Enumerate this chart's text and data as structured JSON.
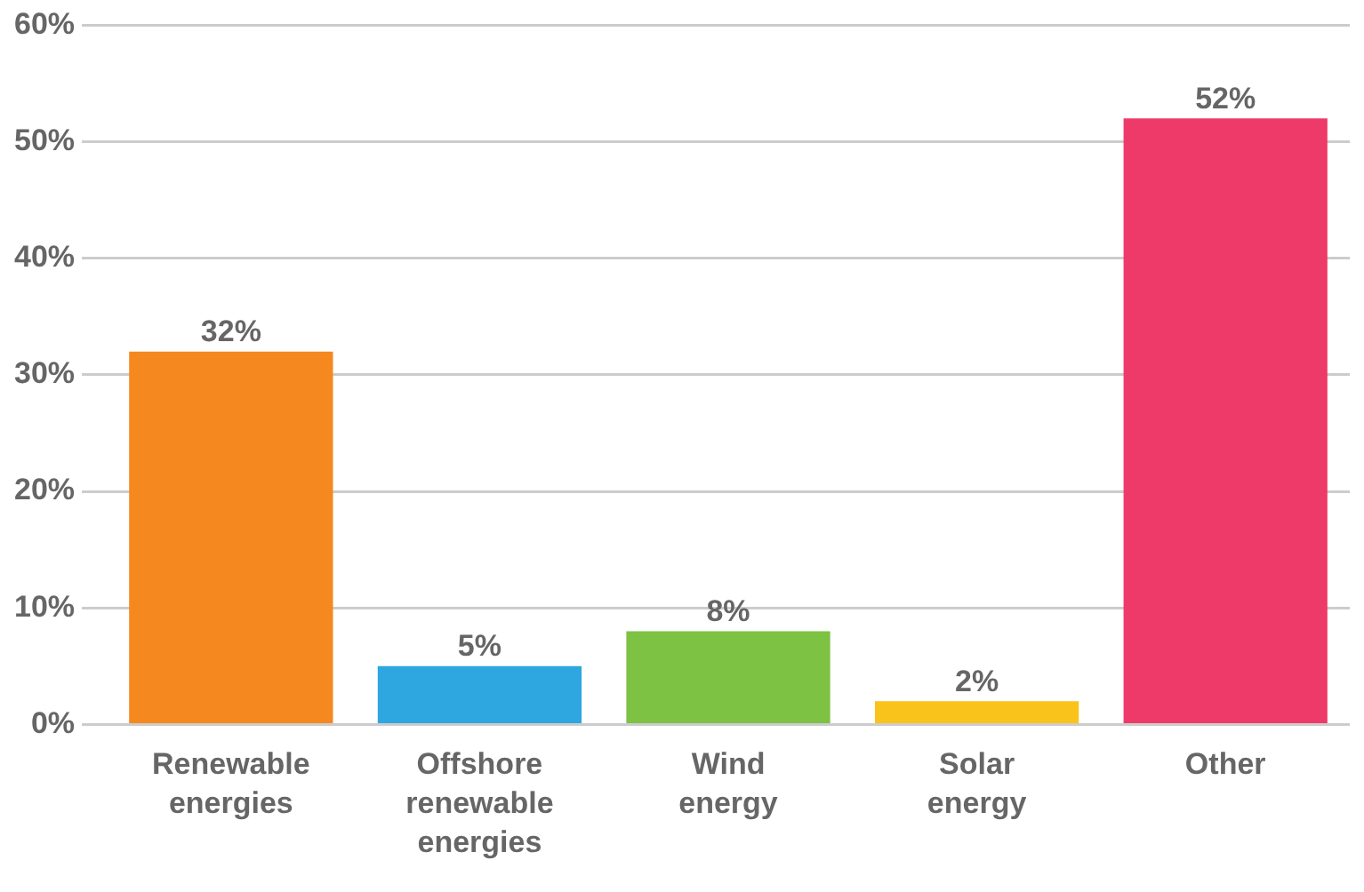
{
  "chart_data": {
    "type": "bar",
    "categories": [
      "Renewable energies",
      "Offshore renewable energies",
      "Wind energy",
      "Solar energy",
      "Other"
    ],
    "values": [
      32,
      5,
      8,
      2,
      52
    ],
    "value_labels": [
      "32%",
      "5%",
      "8%",
      "2%",
      "52%"
    ],
    "colors": [
      "#f5881f",
      "#2ea6e0",
      "#7dc242",
      "#f9c31b",
      "#ee3a68"
    ],
    "ylim": [
      0,
      60
    ],
    "yticks": [
      {
        "value": 0,
        "label": "0%"
      },
      {
        "value": 10,
        "label": "10%"
      },
      {
        "value": 20,
        "label": "20%"
      },
      {
        "value": 30,
        "label": "30%"
      },
      {
        "value": 40,
        "label": "40%"
      },
      {
        "value": 50,
        "label": "50%"
      },
      {
        "value": 60,
        "label": "60%"
      }
    ],
    "grid": "y",
    "legend": false
  }
}
